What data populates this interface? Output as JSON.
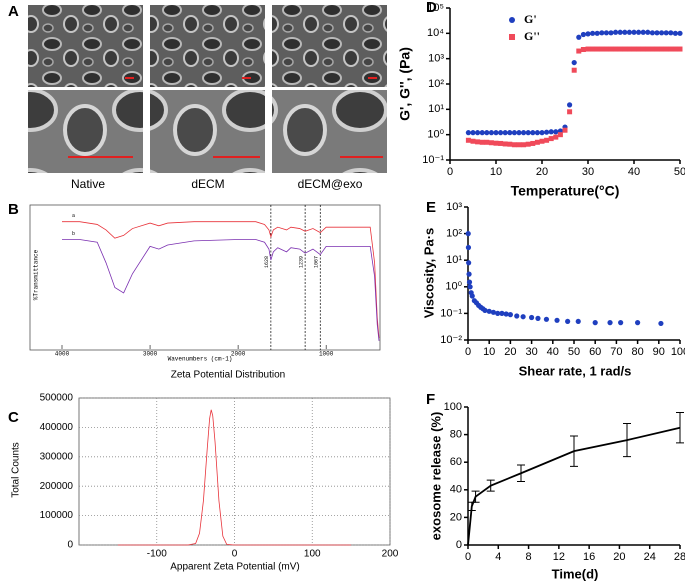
{
  "figure_a": {
    "label": "A",
    "columns": [
      "Native",
      "dECM",
      "dECM@exo"
    ]
  },
  "chart_data": [
    {
      "type": "line",
      "label": "B",
      "x_label": "Wavenumbers (cm-1)",
      "y_label": "%Transmittance",
      "x": [
        4000,
        3800,
        3600,
        3500,
        3400,
        3300,
        3200,
        3000,
        2900,
        2800,
        2500,
        2000,
        1800,
        1700,
        1650,
        1628,
        1600,
        1550,
        1450,
        1400,
        1300,
        1239,
        1150,
        1067,
        1000,
        800,
        600,
        500,
        450,
        420,
        400
      ],
      "series": [
        {
          "name": "a",
          "color": "#e8333a",
          "values": [
            90,
            90,
            88,
            84,
            78,
            80,
            85,
            89,
            87,
            89,
            90,
            90,
            90,
            88,
            84,
            79,
            84,
            86,
            84,
            86,
            85,
            83,
            85,
            82,
            86,
            86,
            86,
            86,
            60,
            20,
            5
          ]
        },
        {
          "name": "b",
          "color": "#7a2fb0",
          "values": [
            77,
            77,
            75,
            60,
            42,
            38,
            52,
            72,
            70,
            73,
            76,
            77,
            77,
            75,
            70,
            62,
            68,
            71,
            68,
            71,
            70,
            67,
            70,
            66,
            72,
            72,
            72,
            72,
            50,
            15,
            3
          ]
        }
      ],
      "xlim": [
        4000,
        400
      ],
      "ylim": [
        0,
        100
      ],
      "xticks": [
        4000,
        3000,
        2000,
        1000
      ],
      "annotations": [
        {
          "x": 1628,
          "label": "1628"
        },
        {
          "x": 1239,
          "label": "1239"
        },
        {
          "x": 1067,
          "label": "1067"
        }
      ]
    },
    {
      "type": "line",
      "label": "C",
      "title": "Zeta Potential Distribution",
      "x_label": "Apparent Zeta Potential (mV)",
      "y_label": "Total Counts",
      "x": [
        -150,
        -60,
        -50,
        -45,
        -40,
        -35,
        -32,
        -30,
        -28,
        -25,
        -20,
        -15,
        -10,
        0,
        150
      ],
      "series": [
        {
          "name": "Total Counts",
          "color": "#e8333a",
          "values": [
            0,
            0,
            5000,
            40000,
            150000,
            330000,
            430000,
            460000,
            440000,
            350000,
            150000,
            30000,
            2000,
            0,
            0
          ]
        }
      ],
      "xlim": [
        -200,
        200
      ],
      "ylim": [
        0,
        500000
      ],
      "xticks": [
        -100,
        0,
        100,
        200
      ],
      "yticks": [
        0,
        100000,
        200000,
        300000,
        400000,
        500000
      ],
      "grid": true
    },
    {
      "type": "scatter",
      "label": "D",
      "x_label": "Temperature(°C)",
      "y_label": "G', G'', (Pa)",
      "x": [
        4,
        5,
        6,
        7,
        8,
        9,
        10,
        11,
        12,
        13,
        14,
        15,
        16,
        17,
        18,
        19,
        20,
        21,
        22,
        23,
        24,
        25,
        26,
        27,
        28,
        29,
        30,
        31,
        32,
        33,
        34,
        35,
        36,
        37,
        38,
        39,
        40,
        41,
        42,
        43,
        44,
        45,
        46,
        47,
        48,
        49,
        50
      ],
      "series": [
        {
          "name": "G'",
          "color": "#1f3fbf",
          "marker": "circle",
          "values": [
            1.2,
            1.2,
            1.2,
            1.2,
            1.2,
            1.2,
            1.2,
            1.2,
            1.2,
            1.2,
            1.2,
            1.2,
            1.2,
            1.2,
            1.2,
            1.2,
            1.2,
            1.25,
            1.3,
            1.3,
            1.4,
            2,
            15,
            700,
            7000,
            9000,
            9500,
            10000,
            10000,
            10500,
            10500,
            10500,
            11000,
            11000,
            11000,
            11000,
            11000,
            11000,
            11000,
            11000,
            10500,
            10500,
            10500,
            10500,
            10500,
            10000,
            10000
          ]
        },
        {
          "name": "G''",
          "color": "#f04a5a",
          "marker": "square",
          "values": [
            0.6,
            0.55,
            0.52,
            0.5,
            0.5,
            0.48,
            0.46,
            0.45,
            0.43,
            0.42,
            0.4,
            0.4,
            0.4,
            0.42,
            0.45,
            0.5,
            0.55,
            0.6,
            0.7,
            0.8,
            1.0,
            1.5,
            8,
            350,
            2000,
            2300,
            2400,
            2400,
            2400,
            2400,
            2400,
            2400,
            2400,
            2400,
            2400,
            2400,
            2400,
            2400,
            2400,
            2400,
            2400,
            2400,
            2400,
            2400,
            2400,
            2400,
            2400
          ]
        }
      ],
      "xlim": [
        0,
        50
      ],
      "ylim": [
        0.1,
        100000
      ],
      "ylog": true,
      "xticks": [
        0,
        10,
        20,
        30,
        40,
        50
      ],
      "yticks": [
        {
          "value": 0.1,
          "label": "10⁻¹"
        },
        {
          "value": 1,
          "label": "10⁰"
        },
        {
          "value": 10,
          "label": "10¹"
        },
        {
          "value": 100,
          "label": "10²"
        },
        {
          "value": 1000,
          "label": "10³"
        },
        {
          "value": 10000,
          "label": "10⁴"
        },
        {
          "value": 100000,
          "label": "10⁵"
        }
      ],
      "legend": "upper left"
    },
    {
      "type": "scatter",
      "label": "E",
      "x_label": "Shear rate, 1 rad/s",
      "y_label": "Viscosity, Pa·s",
      "x": [
        0.1,
        0.2,
        0.3,
        0.5,
        0.7,
        1,
        1.5,
        2,
        3,
        4,
        5,
        6,
        7,
        8,
        10,
        12,
        14,
        16,
        18,
        20,
        23,
        26,
        30,
        33,
        37,
        42,
        47,
        52,
        60,
        67,
        72,
        80,
        91
      ],
      "series": [
        {
          "name": "Viscosity",
          "color": "#1f3fbf",
          "marker": "circle",
          "values": [
            100,
            30,
            8,
            3,
            1.5,
            1,
            0.6,
            0.45,
            0.3,
            0.25,
            0.2,
            0.17,
            0.15,
            0.13,
            0.12,
            0.11,
            0.1,
            0.1,
            0.095,
            0.09,
            0.08,
            0.075,
            0.07,
            0.065,
            0.06,
            0.055,
            0.05,
            0.05,
            0.045,
            0.045,
            0.045,
            0.045,
            0.042
          ]
        }
      ],
      "xlim": [
        0,
        100
      ],
      "ylim": [
        0.01,
        1000
      ],
      "ylog": true,
      "xticks": [
        0,
        10,
        20,
        30,
        40,
        50,
        60,
        70,
        80,
        90,
        100
      ],
      "yticks": [
        {
          "value": 0.01,
          "label": "10⁻²"
        },
        {
          "value": 0.1,
          "label": "10⁻¹"
        },
        {
          "value": 1,
          "label": "10⁰"
        },
        {
          "value": 10,
          "label": "10¹"
        },
        {
          "value": 100,
          "label": "10²"
        },
        {
          "value": 1000,
          "label": "10³"
        }
      ]
    },
    {
      "type": "line",
      "label": "F",
      "x_label": "Time(d)",
      "y_label": "exosome release (%)",
      "x": [
        0,
        0.5,
        1,
        3,
        7,
        14,
        21,
        28
      ],
      "series": [
        {
          "name": "exosome release",
          "color": "#000000",
          "values": [
            0,
            28,
            35,
            43,
            52,
            68,
            76,
            85
          ],
          "errors": [
            0,
            3,
            4,
            4,
            6,
            11,
            12,
            11
          ]
        }
      ],
      "xlim": [
        0,
        28
      ],
      "ylim": [
        0,
        100
      ],
      "xticks": [
        0,
        4,
        8,
        12,
        16,
        20,
        24,
        28
      ],
      "yticks": [
        0,
        20,
        40,
        60,
        80,
        100
      ]
    }
  ]
}
